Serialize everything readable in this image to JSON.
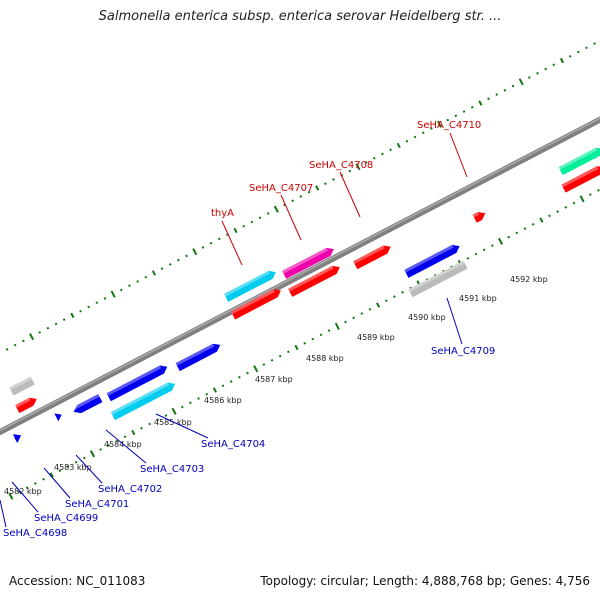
{
  "title": "Salmonella enterica subsp. enterica serovar Heidelberg str. ...",
  "accession": "Accession: NC_011083",
  "summary": "Topology: circular; Length: 4,888,768 bp; Genes: 4,756",
  "colors": {
    "red": "#ff0000",
    "blue": "#0000ee",
    "cyan": "#00ccee",
    "magenta": "#ee00aa",
    "gray": "#bbbbbb",
    "teal": "#00ee99",
    "backbone": "#808080",
    "tick": "#117711",
    "label_top": "#cc0000",
    "label_bottom": "#0000bb"
  },
  "scale_ticks": [
    "4582 kbp",
    "4583 kbp",
    "4584 kbp",
    "4585 kbp",
    "4586 kbp",
    "4587 kbp",
    "4588 kbp",
    "4589 kbp",
    "4590 kbp",
    "4591 kbp",
    "4592 kbp"
  ],
  "gene_labels_top": [
    "thyA",
    "SeHA_C4707",
    "SeHA_C4708",
    "SeHA_C4710"
  ],
  "gene_labels_bottom": [
    "SeHA_C4698",
    "SeHA_C4699",
    "SeHA_C4701",
    "SeHA_C4702",
    "SeHA_C4703",
    "SeHA_C4704",
    "SeHA_C4709"
  ]
}
